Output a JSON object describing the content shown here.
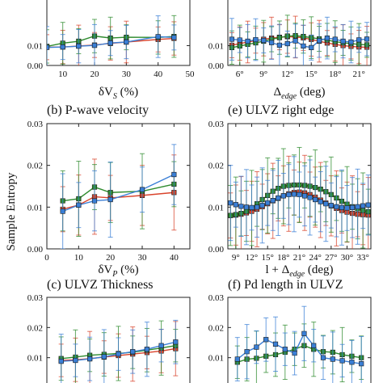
{
  "figure": {
    "ylabel": "Sample Entropy"
  },
  "chart_data": [
    {
      "id": "a",
      "type": "line",
      "title": "",
      "xlabel": "δV_S (%)",
      "xlabel_main": "δV",
      "xlabel_sub": "S",
      "xlabel_tail": " (%)",
      "xlim": [
        5,
        50
      ],
      "ylim": [
        0,
        0.035
      ],
      "xticks": [
        10,
        20,
        30,
        40,
        50
      ],
      "yticks": [
        0.0,
        0.01
      ],
      "ytick_labels": [
        "0.00",
        "0.01"
      ],
      "series": [
        {
          "color": "#d9432b",
          "x": [
            5,
            10,
            15,
            20,
            25,
            30,
            40,
            45
          ],
          "y": [
            0.0092,
            0.0093,
            0.0098,
            0.0103,
            0.0111,
            0.0118,
            0.0131,
            0.0136
          ]
        },
        {
          "color": "#2e8b2e",
          "x": [
            5,
            10,
            15,
            20,
            25,
            30,
            40,
            45
          ],
          "y": [
            0.0096,
            0.0112,
            0.0122,
            0.0148,
            0.0138,
            0.0142,
            0.0141,
            0.0146
          ]
        },
        {
          "color": "#3a7fd6",
          "x": [
            5,
            10,
            15,
            20,
            25,
            30,
            40,
            45
          ],
          "y": [
            0.0091,
            0.0093,
            0.0097,
            0.0101,
            0.0113,
            0.0118,
            0.0145,
            0.0141
          ]
        }
      ]
    },
    {
      "id": "b",
      "type": "line",
      "title": "(b) P-wave velocity",
      "xlabel": "δV_P (%)",
      "xlabel_main": "δV",
      "xlabel_sub": "P",
      "xlabel_tail": " (%)",
      "xlim": [
        0,
        45
      ],
      "ylim": [
        0,
        0.03
      ],
      "xticks": [
        0,
        10,
        20,
        30,
        40
      ],
      "yticks": [
        0.0,
        0.01,
        0.02,
        0.03
      ],
      "ytick_labels": [
        "0.00",
        "0.01",
        "0.02",
        "0.03"
      ],
      "series": [
        {
          "color": "#d9432b",
          "x": [
            5,
            10,
            15,
            20,
            30,
            40
          ],
          "y": [
            0.0095,
            0.0105,
            0.0125,
            0.0122,
            0.0128,
            0.0135
          ]
        },
        {
          "color": "#2e8b2e",
          "x": [
            5,
            10,
            15,
            20,
            30,
            40
          ],
          "y": [
            0.0115,
            0.012,
            0.0148,
            0.0135,
            0.0138,
            0.0155
          ]
        },
        {
          "color": "#3a7fd6",
          "x": [
            5,
            10,
            15,
            20,
            30,
            40
          ],
          "y": [
            0.009,
            0.0105,
            0.0115,
            0.0118,
            0.0142,
            0.0178
          ]
        }
      ]
    },
    {
      "id": "c",
      "type": "line",
      "title": "(c) ULVZ Thickness",
      "xlim": [
        0,
        10
      ],
      "ylim": [
        0,
        0.03
      ],
      "yticks": [
        0.01,
        0.02,
        0.03
      ],
      "ytick_labels": [
        "0.01",
        "0.02",
        "0.03"
      ],
      "series": [
        {
          "color": "#d9432b",
          "x": [
            1,
            2,
            3,
            4,
            5,
            6,
            7,
            8,
            9
          ],
          "y": [
            0.0091,
            0.0093,
            0.0097,
            0.0102,
            0.0107,
            0.0112,
            0.0117,
            0.0122,
            0.013
          ]
        },
        {
          "color": "#2e8b2e",
          "x": [
            1,
            2,
            3,
            4,
            5,
            6,
            7,
            8,
            9
          ],
          "y": [
            0.0097,
            0.0102,
            0.0108,
            0.0111,
            0.0114,
            0.0118,
            0.0125,
            0.0132,
            0.014
          ]
        },
        {
          "color": "#3a7fd6",
          "x": [
            1,
            2,
            3,
            4,
            5,
            6,
            7,
            8,
            9
          ],
          "y": [
            0.0088,
            0.0091,
            0.0096,
            0.0103,
            0.0112,
            0.012,
            0.0128,
            0.014,
            0.0152
          ]
        }
      ]
    },
    {
      "id": "d",
      "type": "line",
      "title": "",
      "xlabel": "Δedge (deg)",
      "xlabel_main": "Δ",
      "xlabel_sub": "edge",
      "xlabel_tail": " (deg)",
      "xlim": [
        4.5,
        22.5
      ],
      "ylim": [
        0,
        0.035
      ],
      "xticks": [
        6,
        9,
        12,
        15,
        18,
        21
      ],
      "xtick_labels": [
        "6°",
        "9°",
        "12°",
        "15°",
        "18°",
        "21°"
      ],
      "yticks": [
        0.0,
        0.01
      ],
      "ytick_labels": [
        "0.00",
        "0.01"
      ],
      "series": [
        {
          "color": "#d9432b",
          "x": [
            5,
            6,
            7,
            8,
            9,
            10,
            11,
            12,
            13,
            14,
            15,
            16,
            17,
            18,
            19,
            20,
            21,
            22
          ],
          "y": [
            0.0102,
            0.011,
            0.0118,
            0.0125,
            0.0132,
            0.0138,
            0.0142,
            0.0145,
            0.0143,
            0.0139,
            0.0131,
            0.0122,
            0.0113,
            0.0106,
            0.01,
            0.0096,
            0.0093,
            0.0092
          ]
        },
        {
          "color": "#2e8b2e",
          "x": [
            5,
            6,
            7,
            8,
            9,
            10,
            11,
            12,
            13,
            14,
            15,
            16,
            17,
            18,
            19,
            20,
            21,
            22
          ],
          "y": [
            0.009,
            0.0098,
            0.0106,
            0.0114,
            0.0122,
            0.0132,
            0.014,
            0.0148,
            0.015,
            0.0146,
            0.014,
            0.0134,
            0.0128,
            0.012,
            0.0114,
            0.011,
            0.0106,
            0.0104
          ]
        },
        {
          "color": "#3a7fd6",
          "x": [
            5,
            6,
            7,
            8,
            9,
            10,
            11,
            12,
            13,
            14,
            15,
            16,
            17,
            18,
            19,
            20,
            21,
            22
          ],
          "y": [
            0.0132,
            0.0128,
            0.0122,
            0.013,
            0.0126,
            0.0115,
            0.0102,
            0.011,
            0.0124,
            0.0098,
            0.009,
            0.0125,
            0.0138,
            0.0132,
            0.0122,
            0.0118,
            0.0129,
            0.0133
          ]
        }
      ]
    },
    {
      "id": "e",
      "type": "line",
      "title": "(e) ULVZ right edge",
      "xlabel": "l + Δedge (deg)",
      "xlabel_main": "l + Δ",
      "xlabel_sub": "edge",
      "xlabel_tail": " (deg)",
      "xlim": [
        7.5,
        34.5
      ],
      "ylim": [
        0,
        0.03
      ],
      "xticks": [
        9,
        12,
        15,
        18,
        21,
        24,
        27,
        30,
        33
      ],
      "xtick_labels": [
        "9°",
        "12°",
        "15°",
        "18°",
        "21°",
        "24°",
        "27°",
        "30°",
        "33°"
      ],
      "yticks": [
        0.0,
        0.01,
        0.02,
        0.03
      ],
      "ytick_labels": [
        "0.00",
        "0.01",
        "0.02",
        "0.03"
      ],
      "series": [
        {
          "color": "#d9432b",
          "x": [
            8,
            9,
            10,
            11,
            12,
            13,
            14,
            15,
            16,
            17,
            18,
            19,
            20,
            21,
            22,
            23,
            24,
            25,
            26,
            27,
            28,
            29,
            30,
            31,
            32,
            33,
            34
          ],
          "y": [
            0.008,
            0.0081,
            0.0083,
            0.0086,
            0.009,
            0.0095,
            0.0101,
            0.0108,
            0.0115,
            0.0121,
            0.0127,
            0.0132,
            0.0135,
            0.0136,
            0.0134,
            0.013,
            0.0124,
            0.0117,
            0.011,
            0.0103,
            0.0097,
            0.0092,
            0.0088,
            0.0085,
            0.0083,
            0.0082,
            0.0081
          ]
        },
        {
          "color": "#2e8b2e",
          "x": [
            8,
            9,
            10,
            11,
            12,
            13,
            14,
            15,
            16,
            17,
            18,
            19,
            20,
            21,
            22,
            23,
            24,
            25,
            26,
            27,
            28,
            29,
            30,
            31,
            32,
            33,
            34
          ],
          "y": [
            0.008,
            0.0082,
            0.0085,
            0.009,
            0.0098,
            0.0108,
            0.0118,
            0.0128,
            0.0138,
            0.0145,
            0.015,
            0.0152,
            0.0153,
            0.0153,
            0.0152,
            0.015,
            0.0147,
            0.0143,
            0.0137,
            0.013,
            0.0122,
            0.0114,
            0.0107,
            0.0101,
            0.0096,
            0.0092,
            0.0089
          ]
        },
        {
          "color": "#3a7fd6",
          "x": [
            8,
            9,
            10,
            11,
            12,
            13,
            14,
            15,
            16,
            17,
            18,
            19,
            20,
            21,
            22,
            23,
            24,
            25,
            26,
            27,
            28,
            29,
            30,
            31,
            32,
            33,
            34
          ],
          "y": [
            0.011,
            0.0106,
            0.0102,
            0.01,
            0.0099,
            0.01,
            0.0104,
            0.011,
            0.0116,
            0.0122,
            0.0127,
            0.013,
            0.0131,
            0.013,
            0.0127,
            0.0123,
            0.0118,
            0.0113,
            0.0108,
            0.0104,
            0.0101,
            0.0099,
            0.0098,
            0.0099,
            0.0101,
            0.0103,
            0.0105
          ]
        }
      ]
    },
    {
      "id": "f",
      "type": "line",
      "title": "(f) Pd length in ULVZ",
      "xlim": [
        0,
        15
      ],
      "ylim": [
        0,
        0.03
      ],
      "yticks": [
        0.01,
        0.02,
        0.03
      ],
      "ytick_labels": [
        "0.01",
        "0.02",
        "0.03"
      ],
      "series": [
        {
          "color": "#2e8b2e",
          "x": [
            1,
            2,
            3,
            4,
            5,
            6,
            7,
            8,
            9,
            10,
            11,
            12,
            13,
            14
          ],
          "y": [
            0.0085,
            0.0095,
            0.0098,
            0.0105,
            0.011,
            0.0118,
            0.0128,
            0.014,
            0.0128,
            0.012,
            0.0118,
            0.011,
            0.0105,
            0.01
          ]
        },
        {
          "color": "#3a7fd6",
          "x": [
            1,
            2,
            3,
            4,
            5,
            6,
            7,
            8,
            9,
            10,
            11,
            12,
            13,
            14
          ],
          "y": [
            0.0095,
            0.012,
            0.0135,
            0.016,
            0.0145,
            0.0128,
            0.0115,
            0.018,
            0.014,
            0.01,
            0.0095,
            0.009,
            0.0085,
            0.008
          ]
        }
      ]
    }
  ]
}
